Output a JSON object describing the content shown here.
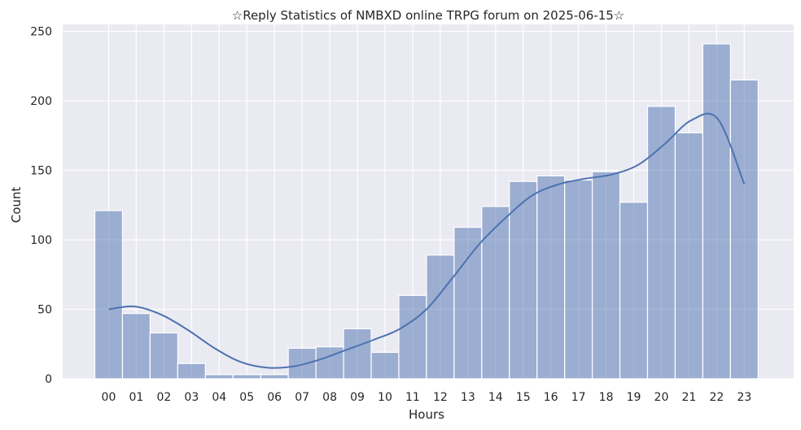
{
  "chart_data": {
    "type": "bar",
    "title": "☆Reply Statistics of NMBXD online TRPG forum on 2025-06-15☆",
    "xlabel": "Hours",
    "ylabel": "Count",
    "categories": [
      "00",
      "01",
      "02",
      "03",
      "04",
      "05",
      "06",
      "07",
      "08",
      "09",
      "10",
      "11",
      "12",
      "13",
      "14",
      "15",
      "16",
      "17",
      "18",
      "19",
      "20",
      "21",
      "22",
      "23"
    ],
    "values": [
      121,
      47,
      33,
      11,
      3,
      3,
      3,
      22,
      23,
      36,
      19,
      60,
      89,
      109,
      124,
      142,
      146,
      143,
      149,
      127,
      196,
      177,
      241,
      215
    ],
    "kde": [
      50,
      52,
      46,
      35,
      22,
      12,
      8,
      9,
      14,
      21,
      28,
      36,
      50,
      73,
      97,
      116,
      132,
      140,
      144,
      147,
      154,
      169,
      186,
      187,
      140
    ],
    "ylim": [
      0,
      255
    ],
    "yticks": [
      0,
      50,
      100,
      150,
      200,
      250
    ],
    "bar_color": "#4C72B0",
    "background": "#EAEAF2",
    "grid": true
  }
}
